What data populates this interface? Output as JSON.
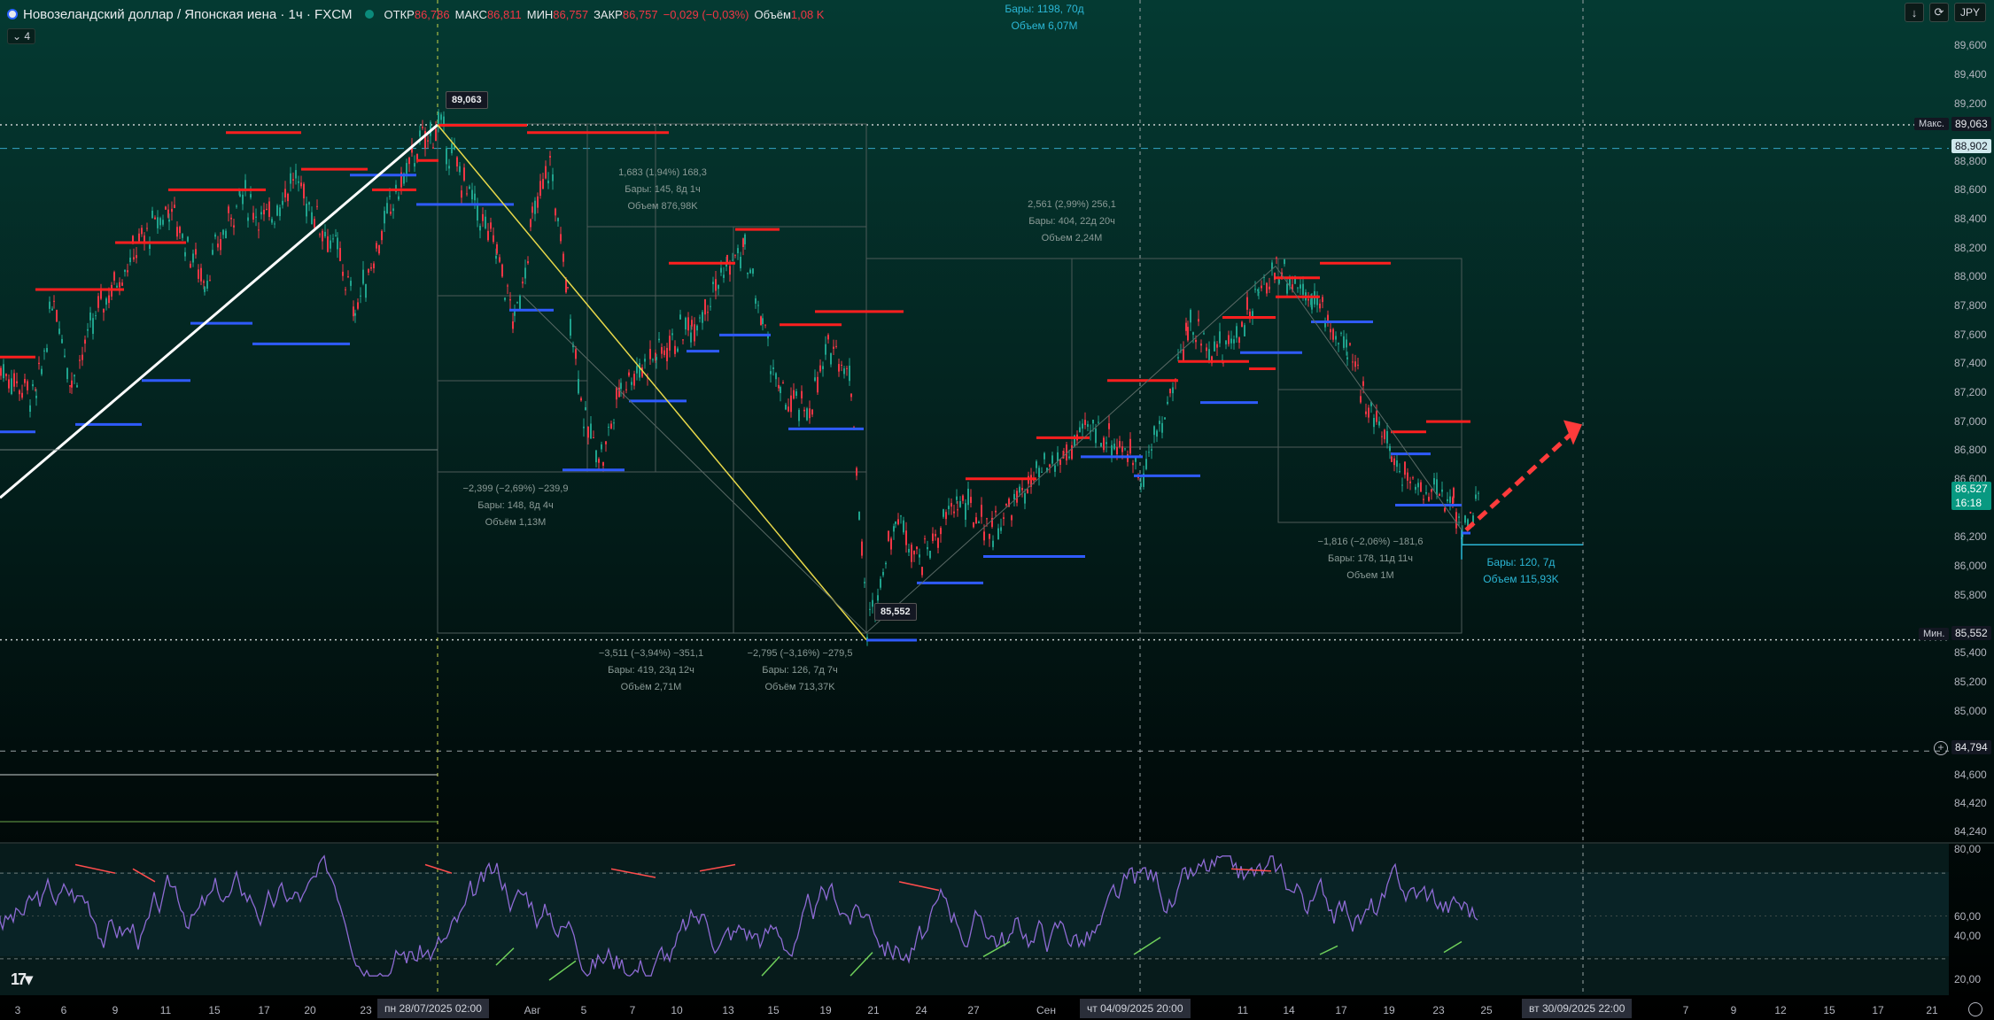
{
  "header": {
    "symbol_title": "Новозеландский доллар / Японская иена · 1ч · FXCM",
    "open_label": "ОТКР",
    "open_value": "86,786",
    "high_label": "МАКС",
    "high_value": "86,811",
    "low_label": "МИН",
    "low_value": "86,757",
    "close_label": "ЗАКР",
    "close_value": "86,757",
    "change": "−0,029 (−0,03%)",
    "volume_label": "Объём",
    "volume_value": "1,08 K",
    "indicators_count": "4"
  },
  "toolbar": {
    "currency": "JPY",
    "download_icon": "download-icon",
    "fullscreen_icon": "fullscreen-icon"
  },
  "colors": {
    "up": "#089981",
    "down": "#f23645",
    "red_level": "#ff1f1f",
    "blue_level": "#2f5bff",
    "accent": "#2bb7d6",
    "rsi": "#7e57c2"
  },
  "price_axis": {
    "ticks": [
      "89,600",
      "89,400",
      "89,200",
      "88,800",
      "88,600",
      "88,400",
      "88,200",
      "88,000",
      "87,800",
      "87,600",
      "87,400",
      "87,200",
      "87,000",
      "86,800",
      "86,600",
      "86,200",
      "86,000",
      "85,800",
      "85,400",
      "85,200",
      "85,000",
      "84,600",
      "84,420",
      "84,240"
    ],
    "max_label": "Макс.",
    "max_value": "89,063",
    "line_value": "88,902",
    "current_price": "86,527",
    "countdown": "16:18",
    "min_label": "Мин.",
    "min_value": "85,552",
    "crosshair_value": "84,794"
  },
  "rsi_axis": {
    "ticks": [
      "80,00",
      "60,00",
      "40,00",
      "20,00"
    ]
  },
  "time_axis": {
    "labels": [
      {
        "t": "3"
      },
      {
        "t": "6"
      },
      {
        "t": "9"
      },
      {
        "t": "11"
      },
      {
        "t": "15"
      },
      {
        "t": "17"
      },
      {
        "t": "20"
      },
      {
        "t": "23"
      },
      {
        "t": "Авг"
      },
      {
        "t": "5"
      },
      {
        "t": "7"
      },
      {
        "t": "10"
      },
      {
        "t": "13"
      },
      {
        "t": "15"
      },
      {
        "t": "19"
      },
      {
        "t": "21"
      },
      {
        "t": "24"
      },
      {
        "t": "27"
      },
      {
        "t": "Сен"
      },
      {
        "t": "11"
      },
      {
        "t": "14"
      },
      {
        "t": "17"
      },
      {
        "t": "19"
      },
      {
        "t": "23"
      },
      {
        "t": "25"
      },
      {
        "t": "7"
      },
      {
        "t": "9"
      },
      {
        "t": "12"
      },
      {
        "t": "15"
      },
      {
        "t": "17"
      },
      {
        "t": "21"
      }
    ],
    "marker1": "пн 28/07/2025   02:00",
    "marker2": "чт 04/09/2025   20:00",
    "marker3": "вт 30/09/2025   22:00"
  },
  "annotations": {
    "top_bars": "Бары: 1198, 70д",
    "top_volume": "Объем 6,07M",
    "high_badge": "89,063",
    "low_badge": "85,552",
    "m1": [
      "1,683 (1,94%) 168,3",
      "Бары: 145, 8д 1ч",
      "Объем 876,98K"
    ],
    "m2": [
      "2,561 (2,99%) 256,1",
      "Бары: 404, 22д 20ч",
      "Объем 2,24M"
    ],
    "m3": [
      "−2,399 (−2,69%) −239,9",
      "Бары: 148, 8д 4ч",
      "Объём 1,13M"
    ],
    "m4": [
      "−3,511 (−3,94%) −351,1",
      "Бары: 419, 23д 12ч",
      "Объём 2,71M"
    ],
    "m5": [
      "−2,795 (−3,16%) −279,5",
      "Бары: 126, 7д 7ч",
      "Объём 713,37K"
    ],
    "m6": [
      "−1,816 (−2,06%) −181,6",
      "Бары: 178, 11д 11ч",
      "Объем 1M"
    ],
    "m7": [
      "Бары: 120, 7д",
      "Объем 115,93K"
    ]
  },
  "logo_text": "17"
}
